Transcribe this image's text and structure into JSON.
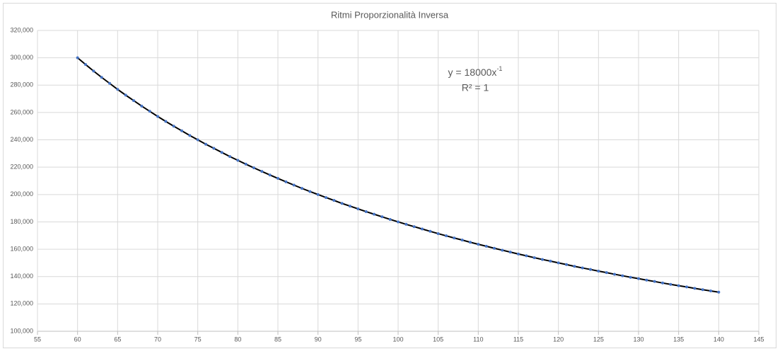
{
  "chart_data": {
    "type": "scatter",
    "title": "Ritmi Proporzionalità Inversa",
    "x": [
      60,
      61,
      62,
      63,
      64,
      65,
      66,
      67,
      68,
      69,
      70,
      71,
      72,
      73,
      74,
      75,
      76,
      77,
      78,
      79,
      80,
      81,
      82,
      83,
      84,
      85,
      86,
      87,
      88,
      89,
      90,
      91,
      92,
      93,
      94,
      95,
      96,
      97,
      98,
      99,
      100,
      101,
      102,
      103,
      104,
      105,
      106,
      107,
      108,
      109,
      110,
      111,
      112,
      113,
      114,
      115,
      116,
      117,
      118,
      119,
      120,
      121,
      122,
      123,
      124,
      125,
      126,
      127,
      128,
      129,
      130,
      131,
      132,
      133,
      134,
      135,
      136,
      137,
      138,
      139,
      140
    ],
    "values": [
      300.0,
      295.1,
      290.3,
      285.7,
      281.3,
      276.9,
      272.7,
      268.7,
      264.7,
      260.9,
      257.1,
      253.5,
      250.0,
      246.6,
      243.2,
      240.0,
      236.8,
      233.8,
      230.8,
      227.8,
      225.0,
      222.2,
      219.5,
      216.9,
      214.3,
      211.8,
      209.3,
      206.9,
      204.5,
      202.2,
      200.0,
      197.8,
      195.7,
      193.5,
      191.5,
      189.5,
      187.5,
      185.6,
      183.7,
      181.8,
      180.0,
      178.2,
      176.5,
      174.8,
      173.1,
      171.4,
      169.8,
      168.2,
      166.7,
      165.1,
      163.6,
      162.2,
      160.7,
      159.3,
      157.9,
      156.5,
      155.2,
      153.8,
      152.5,
      151.3,
      150.0,
      148.8,
      147.5,
      146.3,
      145.2,
      144.0,
      142.9,
      141.7,
      140.6,
      139.5,
      138.5,
      137.4,
      136.4,
      135.3,
      134.3,
      133.3,
      132.4,
      131.4,
      130.4,
      129.5,
      128.6
    ],
    "color": "#4472c4",
    "trendline": true,
    "trendline_color": "#000000",
    "equation": {
      "text": "y = 18000x",
      "superscript": "-1"
    },
    "r_squared": "R² = 1",
    "xlim": [
      55,
      145
    ],
    "xticks": [
      55,
      60,
      65,
      70,
      75,
      80,
      85,
      90,
      95,
      100,
      105,
      110,
      115,
      120,
      125,
      130,
      135,
      140,
      145
    ],
    "ylim": [
      100,
      320
    ],
    "yticks": [
      {
        "value": 100,
        "label": "100,000"
      },
      {
        "value": 120,
        "label": "120,000"
      },
      {
        "value": 140,
        "label": "140,000"
      },
      {
        "value": 160,
        "label": "160,000"
      },
      {
        "value": 180,
        "label": "180,000"
      },
      {
        "value": 200,
        "label": "200,000"
      },
      {
        "value": 220,
        "label": "220,000"
      },
      {
        "value": 240,
        "label": "240,000"
      },
      {
        "value": 260,
        "label": "260,000"
      },
      {
        "value": 280,
        "label": "280,000"
      },
      {
        "value": 300,
        "label": "300,000"
      },
      {
        "value": 320,
        "label": "320,000"
      }
    ],
    "grid": true
  }
}
